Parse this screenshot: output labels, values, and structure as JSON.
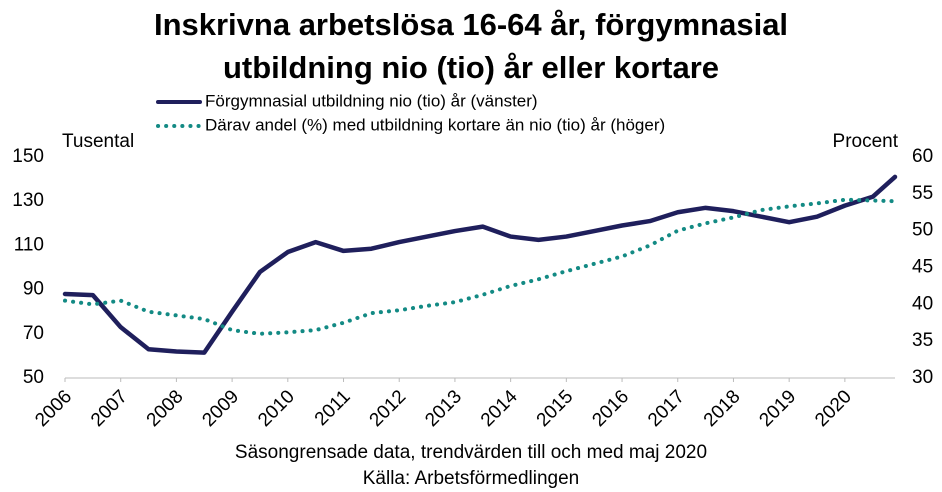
{
  "chart_data": {
    "type": "line",
    "title": [
      "Inskrivna arbetslösa 16-64 år, förgymnasial",
      "utbildning nio (tio) år eller kortare"
    ],
    "y_label": "Tusental",
    "y2_label": "Procent",
    "notes": [
      "Säsongrensade data, trendvärden till och med maj 2020",
      "Källa: Arbetsförmedlingen"
    ],
    "xlim": [
      2006,
      2020.9
    ],
    "xticks": [
      2006,
      2007,
      2008,
      2009,
      2010,
      2011,
      2012,
      2013,
      2014,
      2015,
      2016,
      2017,
      2018,
      2019,
      2020
    ],
    "ylim": [
      50,
      150
    ],
    "yticks": [
      50,
      70,
      90,
      110,
      130,
      150
    ],
    "y2lim": [
      30,
      60
    ],
    "y2ticks": [
      30,
      35,
      40,
      45,
      50,
      55,
      60
    ],
    "series": [
      {
        "name": "Förgymnasial utbildning nio (tio) år (vänster)",
        "color": "#1f1f5c",
        "style": "solid",
        "x": [
          2006,
          2006.5,
          2007,
          2007.5,
          2008,
          2008.5,
          2009,
          2009.5,
          2010,
          2010.5,
          2011,
          2011.5,
          2012,
          2012.5,
          2013,
          2013.5,
          2014,
          2014.5,
          2015,
          2015.5,
          2016,
          2016.5,
          2017,
          2017.5,
          2018,
          2018.5,
          2019,
          2019.5,
          2020,
          2020.5,
          2020.9
        ],
        "values": [
          88,
          87.5,
          73,
          63,
          62,
          61.5,
          80,
          98,
          107,
          111.5,
          107.5,
          108.5,
          111.5,
          114,
          116.5,
          118.5,
          114,
          112.5,
          114,
          116.5,
          119,
          121,
          125,
          127,
          125.5,
          123,
          120.5,
          123,
          128,
          132,
          141
        ]
      },
      {
        "name": "Därav andel (%) med utbildning kortare än nio (tio) år (höger)",
        "color": "#138a84",
        "style": "dotted",
        "axis": "y2",
        "x": [
          2006,
          2006.5,
          2007,
          2007.5,
          2008,
          2008.5,
          2009,
          2009.5,
          2010,
          2010.5,
          2011,
          2011.5,
          2012,
          2012.5,
          2013,
          2013.5,
          2014,
          2014.5,
          2015,
          2015.5,
          2016,
          2016.5,
          2017,
          2017.5,
          2018,
          2018.5,
          2019,
          2019.5,
          2020,
          2020.9
        ],
        "values": [
          40.5,
          40,
          40.5,
          39,
          38.5,
          38,
          36.5,
          36,
          36.2,
          36.5,
          37.5,
          38.8,
          39.2,
          39.8,
          40.3,
          41.3,
          42.5,
          43.4,
          44.5,
          45.5,
          46.5,
          48,
          50,
          51,
          51.8,
          52.8,
          53.3,
          53.7,
          54.2,
          54
        ]
      }
    ]
  }
}
